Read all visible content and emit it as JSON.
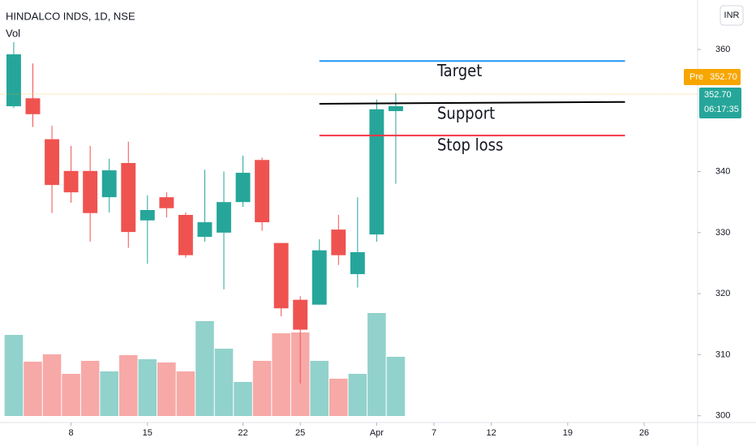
{
  "chart_data": {
    "type": "candlestick",
    "title": "HINDALCO INDS, 1D, NSE",
    "volume_title": "Vol",
    "currency": "INR",
    "up_color": "#26a69a",
    "down_color": "#ef5350",
    "candles": [
      {
        "open": 350.7,
        "high": 361.2,
        "low": 350.4,
        "close": 359.2
      },
      {
        "open": 352.0,
        "high": 357.7,
        "low": 347.3,
        "close": 349.4
      },
      {
        "open": 345.3,
        "high": 347.5,
        "low": 333.2,
        "close": 337.8
      },
      {
        "open": 340.1,
        "high": 344.2,
        "low": 334.9,
        "close": 336.6
      },
      {
        "open": 340.1,
        "high": 344.2,
        "low": 328.5,
        "close": 333.2
      },
      {
        "open": 335.8,
        "high": 342.1,
        "low": 333.3,
        "close": 340.2
      },
      {
        "open": 341.4,
        "high": 344.9,
        "low": 327.5,
        "close": 330.1
      },
      {
        "open": 332.0,
        "high": 336.1,
        "low": 324.9,
        "close": 333.7
      },
      {
        "open": 335.8,
        "high": 336.6,
        "low": 332.5,
        "close": 334.0
      },
      {
        "open": 332.9,
        "high": 333.3,
        "low": 325.9,
        "close": 326.3
      },
      {
        "open": 329.3,
        "high": 340.3,
        "low": 328.5,
        "close": 331.7
      },
      {
        "open": 330.0,
        "high": 340.0,
        "low": 320.7,
        "close": 335.0
      },
      {
        "open": 335.0,
        "high": 342.6,
        "low": 334.2,
        "close": 339.8
      },
      {
        "open": 341.9,
        "high": 342.3,
        "low": 330.3,
        "close": 331.7
      },
      {
        "open": 328.3,
        "high": 328.3,
        "low": 316.3,
        "close": 317.6
      },
      {
        "open": 319.0,
        "high": 319.6,
        "low": 305.3,
        "close": 314.1
      },
      {
        "open": 318.2,
        "high": 328.9,
        "low": 318.2,
        "close": 327.1
      },
      {
        "open": 330.5,
        "high": 332.9,
        "low": 324.7,
        "close": 326.3
      },
      {
        "open": 323.2,
        "high": 335.8,
        "low": 321.0,
        "close": 326.8
      },
      {
        "open": 329.7,
        "high": 351.8,
        "low": 328.5,
        "close": 350.2
      },
      {
        "open": 349.9,
        "high": 352.8,
        "low": 338.0,
        "close": 350.7
      }
    ],
    "volume": [
      100,
      67,
      76,
      52,
      68,
      55,
      75,
      70,
      66,
      55,
      117,
      83,
      42,
      68,
      102,
      103,
      68,
      46,
      52,
      127,
      73
    ],
    "volume_lim": [
      0,
      452
    ],
    "ylim": [
      298.9,
      368.1
    ],
    "yticks": [
      300,
      310,
      320,
      330,
      340,
      360
    ],
    "xlim": [
      -0.72,
      35.8
    ],
    "xticks": [
      {
        "value": 3,
        "label": "8"
      },
      {
        "value": 7,
        "label": "15"
      },
      {
        "value": 12,
        "label": "22"
      },
      {
        "value": 15,
        "label": "25"
      },
      {
        "value": 19,
        "label": "Apr"
      },
      {
        "value": 22,
        "label": "7"
      },
      {
        "value": 25,
        "label": "12"
      },
      {
        "value": 29,
        "label": "19"
      },
      {
        "value": 33,
        "label": "26"
      }
    ],
    "last_price": {
      "value": 352.7,
      "label": "352.70"
    },
    "pre_label": "Pre",
    "countdown": "06:17:35",
    "drawings": [
      {
        "name": "Target",
        "color": "#2196f3",
        "from": 16,
        "to": 32,
        "start": 358.1,
        "end": 358.1
      },
      {
        "name": "Support",
        "color": "#000000",
        "from": 16,
        "to": 32,
        "start": 351.1,
        "end": 351.4
      },
      {
        "name": "Stop loss",
        "color": "#f23645",
        "from": 16,
        "to": 32,
        "start": 345.9,
        "end": 345.9
      }
    ]
  }
}
